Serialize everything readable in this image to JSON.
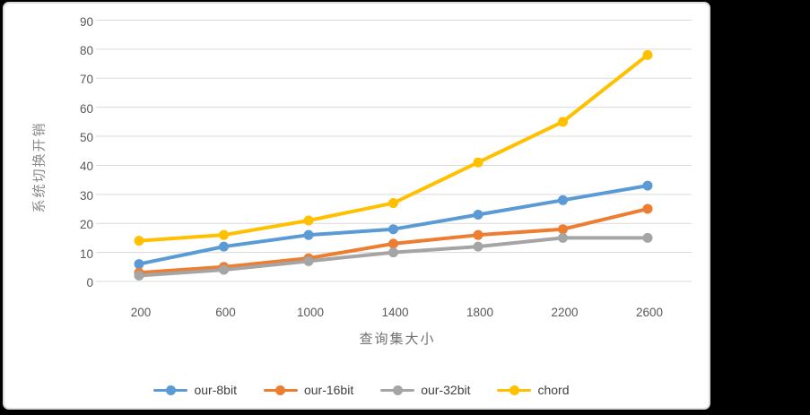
{
  "frame": {
    "background_color": "#000000",
    "panel_background": "#ffffff",
    "panel_border_color": "#dcdcdc"
  },
  "chart_data": {
    "type": "line",
    "title": "",
    "xlabel": "查询集大小",
    "ylabel": "系统切换开销",
    "categories": [
      "200",
      "600",
      "1000",
      "1400",
      "1800",
      "2200",
      "2600"
    ],
    "series": [
      {
        "name": "our-8bit",
        "color": "#5B9BD5",
        "values": [
          6,
          12,
          16,
          18,
          23,
          28,
          33
        ]
      },
      {
        "name": "our-16bit",
        "color": "#ED7D31",
        "values": [
          3,
          5,
          8,
          13,
          16,
          18,
          25
        ]
      },
      {
        "name": "our-32bit",
        "color": "#A5A5A5",
        "values": [
          2,
          4,
          7,
          10,
          12,
          15,
          15
        ]
      },
      {
        "name": "chord",
        "color": "#FFC000",
        "values": [
          14,
          16,
          21,
          27,
          41,
          55,
          78
        ]
      }
    ],
    "ylim": [
      0,
      90
    ],
    "yticks": [
      0,
      10,
      20,
      30,
      40,
      50,
      60,
      70,
      80,
      90
    ],
    "grid": true,
    "gridline_color": "#d9d9d9",
    "tick_color": "#595959",
    "axis_title_color": "#808080",
    "legend_position": "bottom",
    "marker": "circle",
    "line_width": 4
  }
}
